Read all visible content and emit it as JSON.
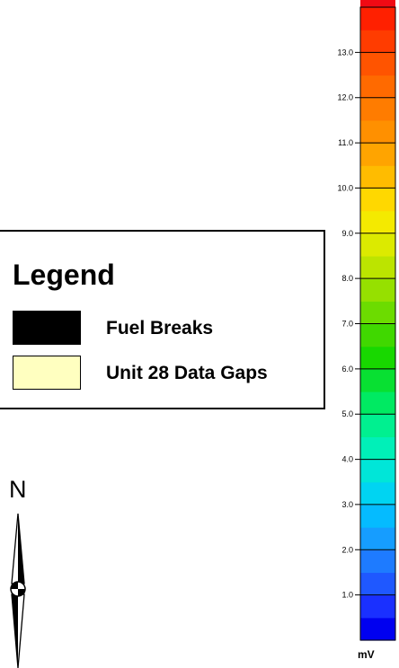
{
  "legend": {
    "title": "Legend",
    "items": [
      {
        "label": "Fuel Breaks",
        "swatch_color": "#000000"
      },
      {
        "label": "Unit 28 Data Gaps",
        "swatch_color": "#ffffc0"
      }
    ]
  },
  "north_arrow": {
    "label": "N"
  },
  "colorbar": {
    "unit": "mV",
    "min": 0,
    "max": 14,
    "step": 0.5,
    "tick_labels": [
      "1.0",
      "2.0",
      "3.0",
      "4.0",
      "5.0",
      "6.0",
      "7.0",
      "8.0",
      "9.0",
      "10.0",
      "11.0",
      "12.0",
      "13.0"
    ],
    "tick_values": [
      1,
      2,
      3,
      4,
      5,
      6,
      7,
      8,
      9,
      10,
      11,
      12,
      13
    ],
    "colors_bottom_to_top": [
      "#0000f0",
      "#1a30ff",
      "#1f58ff",
      "#1e7bff",
      "#169dff",
      "#05bbff",
      "#00d4f2",
      "#00e6d8",
      "#00f0b8",
      "#00f090",
      "#00ea62",
      "#08e032",
      "#18d800",
      "#40d800",
      "#6cdc00",
      "#96e000",
      "#bce400",
      "#dcea00",
      "#f4ea00",
      "#ffd800",
      "#ffbc00",
      "#ffa400",
      "#ff9000",
      "#ff7c00",
      "#ff6a00",
      "#ff5400",
      "#ff3c00",
      "#ff2000",
      "#f00a14",
      "#ff1a5a",
      "#ff1aa0",
      "#ff50d8",
      "#ff8ae8",
      "#ffb8f2"
    ]
  }
}
